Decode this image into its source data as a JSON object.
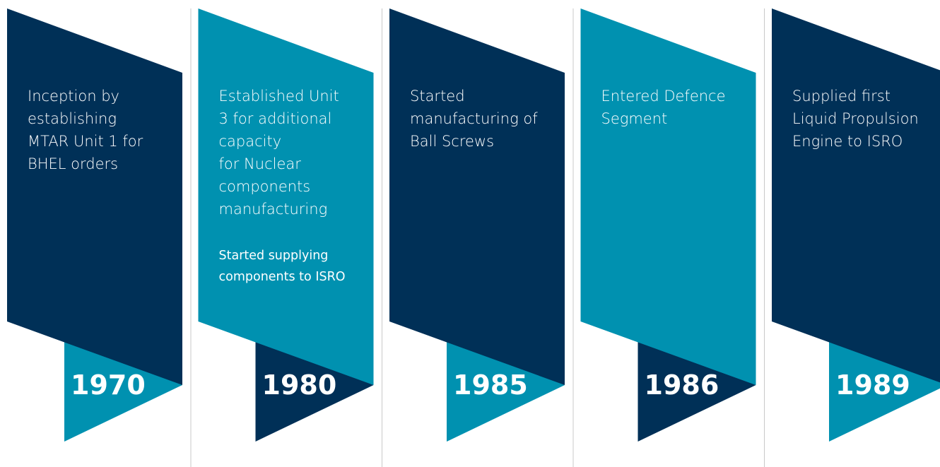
{
  "items": [
    {
      "year": "1970",
      "lines": [
        "Inception by",
        "establishing",
        "MTAR Unit 1 for",
        "BHEL orders"
      ],
      "note_lines": []
    },
    {
      "year": "1980",
      "lines": [
        "Established Unit",
        "3 for additional",
        "capacity",
        "for Nuclear",
        "components",
        "manufacturing"
      ],
      "note_lines": [
        "Started supplying",
        "components to ISRO"
      ]
    },
    {
      "year": "1985",
      "lines": [
        "Started",
        "manufacturing of",
        "Ball Screws"
      ],
      "note_lines": []
    },
    {
      "year": "1986",
      "lines": [
        "Entered Defence",
        "Segment"
      ],
      "note_lines": []
    },
    {
      "year": "1989",
      "lines": [
        "Supplied first",
        "Liquid Propulsion",
        "Engine to ISRO"
      ],
      "note_lines": []
    }
  ]
}
